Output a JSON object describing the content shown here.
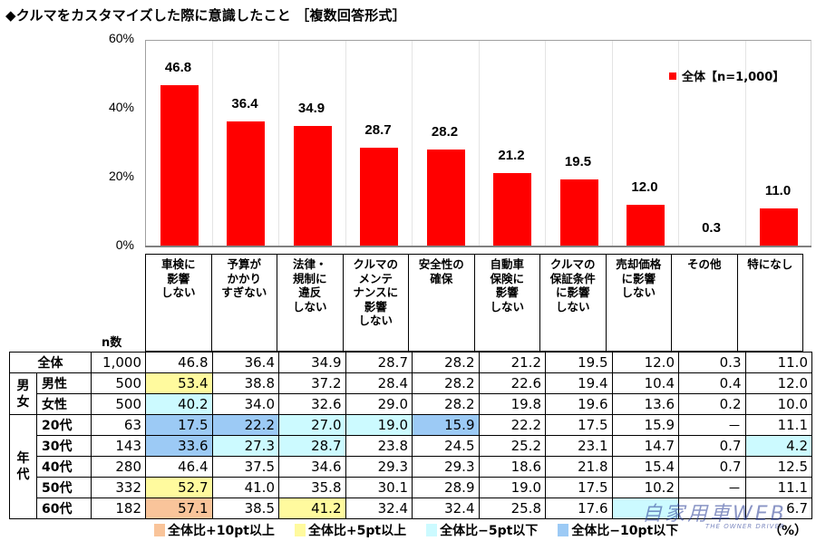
{
  "title": "◆クルマをカスタマイズした際に意識したこと ［複数回答形式］",
  "chart_data": {
    "type": "bar",
    "title": "クルマをカスタマイズした際に意識したこと［複数回答形式］",
    "xlabel": "",
    "ylabel": "",
    "ylim": [
      0,
      60
    ],
    "yticks": [
      "0%",
      "20%",
      "40%",
      "60%"
    ],
    "grid": "vertical",
    "legend_position": "top-right",
    "categories": [
      "車検に影響しない",
      "予算がかかりすぎない",
      "法律・規制に違反しない",
      "クルマのメンテナンスに影響しない",
      "安全性の確保",
      "自動車保険に影響しない",
      "クルマの保証条件に影響しない",
      "売却価格に影響しない",
      "その他",
      "特になし"
    ],
    "series": [
      {
        "name": "全体【n=1,000】",
        "color": "#ff0000",
        "values": [
          46.8,
          36.4,
          34.9,
          28.7,
          28.2,
          21.2,
          19.5,
          12.0,
          0.3,
          11.0
        ]
      }
    ],
    "table": {
      "n_header": "n数",
      "unit": "（%）",
      "rows": [
        {
          "group": "",
          "label": "全体",
          "n": "1,000",
          "values": [
            "46.8",
            "36.4",
            "34.9",
            "28.7",
            "28.2",
            "21.2",
            "19.5",
            "12.0",
            "0.3",
            "11.0"
          ],
          "highlights": [
            "",
            "",
            "",
            "",
            "",
            "",
            "",
            "",
            "",
            ""
          ]
        },
        {
          "group": "男女",
          "label": "男性",
          "n": "500",
          "values": [
            "53.4",
            "38.8",
            "37.2",
            "28.4",
            "28.2",
            "22.6",
            "19.4",
            "10.4",
            "0.4",
            "12.0"
          ],
          "highlights": [
            "p5",
            "",
            "",
            "",
            "",
            "",
            "",
            "",
            "",
            ""
          ]
        },
        {
          "group": "男女",
          "label": "女性",
          "n": "500",
          "values": [
            "40.2",
            "34.0",
            "32.6",
            "29.0",
            "28.2",
            "19.8",
            "19.6",
            "13.6",
            "0.2",
            "10.0"
          ],
          "highlights": [
            "m5",
            "",
            "",
            "",
            "",
            "",
            "",
            "",
            "",
            ""
          ]
        },
        {
          "group": "年代",
          "label": "20代",
          "n": "63",
          "values": [
            "17.5",
            "22.2",
            "27.0",
            "19.0",
            "15.9",
            "22.2",
            "17.5",
            "15.9",
            "－",
            "11.1"
          ],
          "highlights": [
            "m10",
            "m10",
            "m5",
            "m5",
            "m10",
            "",
            "",
            "",
            "",
            ""
          ]
        },
        {
          "group": "年代",
          "label": "30代",
          "n": "143",
          "values": [
            "33.6",
            "27.3",
            "28.7",
            "23.8",
            "24.5",
            "25.2",
            "23.1",
            "14.7",
            "0.7",
            "4.2"
          ],
          "highlights": [
            "m10",
            "m5",
            "m5",
            "",
            "",
            "",
            "",
            "",
            "",
            "m5"
          ]
        },
        {
          "group": "年代",
          "label": "40代",
          "n": "280",
          "values": [
            "46.4",
            "37.5",
            "34.6",
            "29.3",
            "29.3",
            "18.6",
            "21.8",
            "15.4",
            "0.7",
            "12.5"
          ],
          "highlights": [
            "",
            "",
            "",
            "",
            "",
            "",
            "",
            "",
            "",
            ""
          ]
        },
        {
          "group": "年代",
          "label": "50代",
          "n": "332",
          "values": [
            "52.7",
            "41.0",
            "35.8",
            "30.1",
            "28.9",
            "19.0",
            "17.5",
            "10.2",
            "－",
            "11.1"
          ],
          "highlights": [
            "p5",
            "",
            "",
            "",
            "",
            "",
            "",
            "",
            "",
            ""
          ]
        },
        {
          "group": "年代",
          "label": "60代",
          "n": "182",
          "values": [
            "57.1",
            "38.5",
            "41.2",
            "32.4",
            "32.4",
            "25.8",
            "17.6",
            "",
            "",
            "6.7"
          ],
          "highlights": [
            "p10",
            "",
            "p5",
            "",
            "",
            "",
            "",
            "m5",
            "",
            ""
          ]
        }
      ]
    }
  },
  "legend": {
    "label": "全体【n=1,000】",
    "color": "#ff0000"
  },
  "header_labels": [
    [
      "車検に",
      "影響",
      "しない"
    ],
    [
      "予算が",
      "かかり",
      "すぎない"
    ],
    [
      "法律・",
      "規制に",
      "違反",
      "しない"
    ],
    [
      "クルマの",
      "メンテ",
      "ナンスに",
      "影響",
      "しない"
    ],
    [
      "安全性の",
      "確保"
    ],
    [
      "自動車",
      "保険に",
      "影響",
      "しない"
    ],
    [
      "クルマの",
      "保証条件",
      "に影響",
      "しない"
    ],
    [
      "売却価格",
      "に影響",
      "しない"
    ],
    [
      "その他"
    ],
    [
      "特になし"
    ]
  ],
  "group_labels": {
    "gender": "男\n女",
    "age": "年\n代"
  },
  "color_keys": [
    {
      "label": "全体比+10pt以上",
      "color": "#f9c49a"
    },
    {
      "label": "全体比+5pt以上",
      "color": "#fffa9e"
    },
    {
      "label": "全体比−5pt以下",
      "color": "#ccfaff"
    },
    {
      "label": "全体比−10pt以下",
      "color": "#9ccaf5"
    }
  ],
  "unit": "（%）",
  "n_header": "n数",
  "watermark": {
    "main": "自家用車WEB",
    "sub": "THE OWNER DRIVER"
  }
}
